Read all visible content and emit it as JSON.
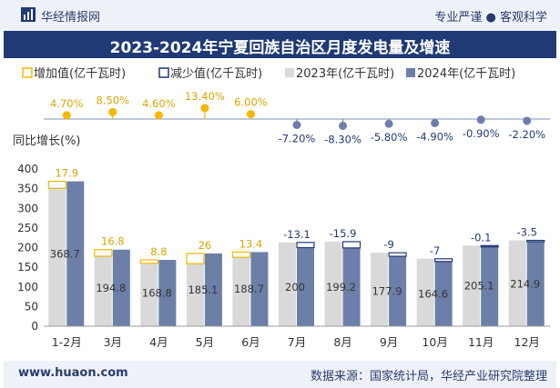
{
  "header": {
    "brand": "华经情报网",
    "tagline": "专业严谨 ● 客观科学",
    "title": "2023-2024年宁夏回族自治区月度发电量及增速"
  },
  "footer": {
    "url": "www.huaon.com",
    "source": "数据来源：国家统计局，华经产业研究院整理"
  },
  "watermark": "华经产业研究院",
  "colors": {
    "header_bg": "#1f3a74",
    "bar_2023": "#d9d9d9",
    "bar_2024": "#6c7fa8",
    "increase": "#f2b800",
    "decrease": "#1f3a74",
    "positive_dot": "#f5b700",
    "negative_dot": "#6c7fa8",
    "label_orange": "#d9a400",
    "label_navy": "#1f3a74"
  },
  "chart_data": {
    "type": "bar",
    "title": "2023-2024年宁夏回族自治区月度发电量及增速",
    "ylabel": "同比增长(%)",
    "ylim": [
      0,
      400
    ],
    "yticks": [
      0,
      50,
      100,
      150,
      200,
      250,
      300,
      350,
      400
    ],
    "categories": [
      "1-2月",
      "3月",
      "4月",
      "5月",
      "6月",
      "7月",
      "8月",
      "9月",
      "10月",
      "11月",
      "12月"
    ],
    "legend": [
      "增加值(亿千瓦时)",
      "减少值(亿千瓦时)",
      "2023年(亿千瓦时)",
      "2024年(亿千瓦时)"
    ],
    "series": [
      {
        "name": "2023年(亿千瓦时)",
        "values": [
          350.8,
          178.0,
          160.0,
          159.1,
          175.3,
          213.1,
          215.1,
          186.9,
          171.6,
          205.2,
          218.4
        ]
      },
      {
        "name": "2024年(亿千瓦时)",
        "values": [
          368.7,
          194.8,
          168.8,
          185.1,
          188.7,
          200,
          199.2,
          177.9,
          164.6,
          205.1,
          214.9
        ]
      },
      {
        "name": "增减值(亿千瓦时)",
        "values": [
          17.9,
          16.8,
          8.8,
          26,
          13.4,
          -13.1,
          -15.9,
          -9,
          -7,
          -0.1,
          -3.5
        ]
      }
    ],
    "value_labels": [
      "368.7",
      "194.8",
      "168.8",
      "185.1",
      "188.7",
      "200",
      "199.2",
      "177.9",
      "164.6",
      "205.1",
      "214.9"
    ],
    "diff_labels": [
      "17.9",
      "16.8",
      "8.8",
      "26",
      "13.4",
      "-13.1",
      "-15.9",
      "-9",
      "-7",
      "-0.1",
      "-3.5"
    ],
    "growth_rate": [
      4.7,
      8.5,
      4.6,
      13.4,
      6.0,
      -7.2,
      -8.3,
      -5.8,
      -4.9,
      -0.9,
      -2.2
    ],
    "growth_labels": [
      "4.70%",
      "8.50%",
      "4.60%",
      "13.40%",
      "6.00%",
      "-7.20%",
      "-8.30%",
      "-5.80%",
      "-4.90%",
      "-0.90%",
      "-2.20%"
    ]
  }
}
